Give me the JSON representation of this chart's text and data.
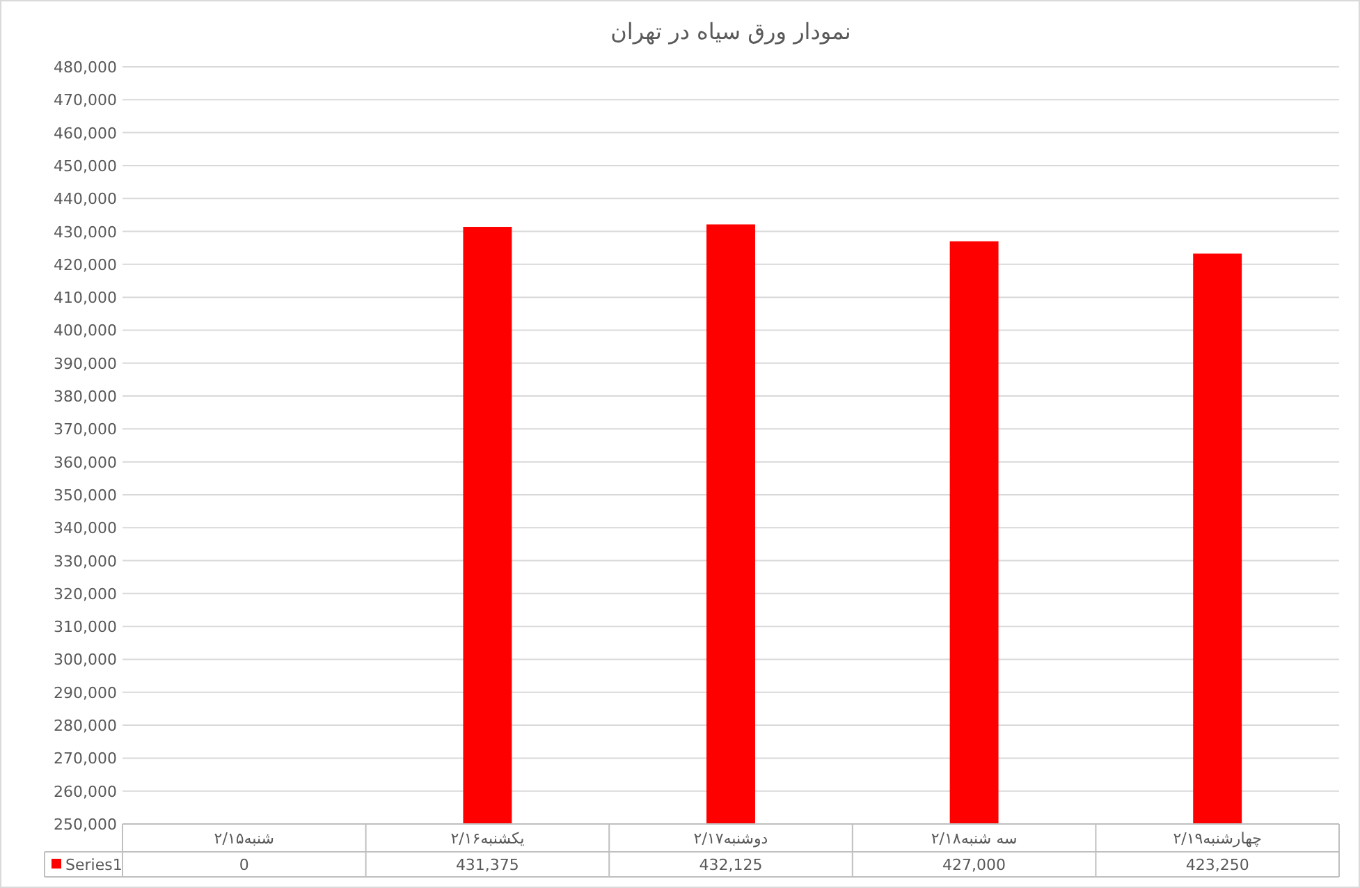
{
  "chart_data": {
    "type": "bar",
    "title": "نمودار ورق سیاه در تهران",
    "categories": [
      "شنبه۲/۱۵",
      "یکشنبه۲/۱۶",
      "دوشنبه۲/۱۷",
      "سه شنبه۲/۱۸",
      "چهارشنبه۲/۱۹"
    ],
    "series": [
      {
        "name": "Series1",
        "color": "#ff0000",
        "values": [
          null,
          431375,
          432125,
          427000,
          423250
        ],
        "value_labels": [
          "0",
          "431,375",
          "432,125",
          "427,000",
          "423,250"
        ]
      }
    ],
    "ylim": [
      250000,
      480000
    ],
    "yticks": [
      {
        "value": 250000,
        "label": "250,000"
      },
      {
        "value": 260000,
        "label": "260,000"
      },
      {
        "value": 270000,
        "label": "270,000"
      },
      {
        "value": 280000,
        "label": "280,000"
      },
      {
        "value": 290000,
        "label": "290,000"
      },
      {
        "value": 300000,
        "label": "300,000"
      },
      {
        "value": 310000,
        "label": "310,000"
      },
      {
        "value": 320000,
        "label": "320,000"
      },
      {
        "value": 330000,
        "label": "330,000"
      },
      {
        "value": 340000,
        "label": "340,000"
      },
      {
        "value": 350000,
        "label": "350,000"
      },
      {
        "value": 360000,
        "label": "360,000"
      },
      {
        "value": 370000,
        "label": "370,000"
      },
      {
        "value": 380000,
        "label": "380,000"
      },
      {
        "value": 390000,
        "label": "390,000"
      },
      {
        "value": 400000,
        "label": "400,000"
      },
      {
        "value": 410000,
        "label": "410,000"
      },
      {
        "value": 420000,
        "label": "420,000"
      },
      {
        "value": 430000,
        "label": "430,000"
      },
      {
        "value": 440000,
        "label": "440,000"
      },
      {
        "value": 450000,
        "label": "450,000"
      },
      {
        "value": 460000,
        "label": "460,000"
      },
      {
        "value": 470000,
        "label": "470,000"
      },
      {
        "value": 480000,
        "label": "480,000"
      }
    ],
    "grid": "y",
    "legend": "bottom"
  }
}
